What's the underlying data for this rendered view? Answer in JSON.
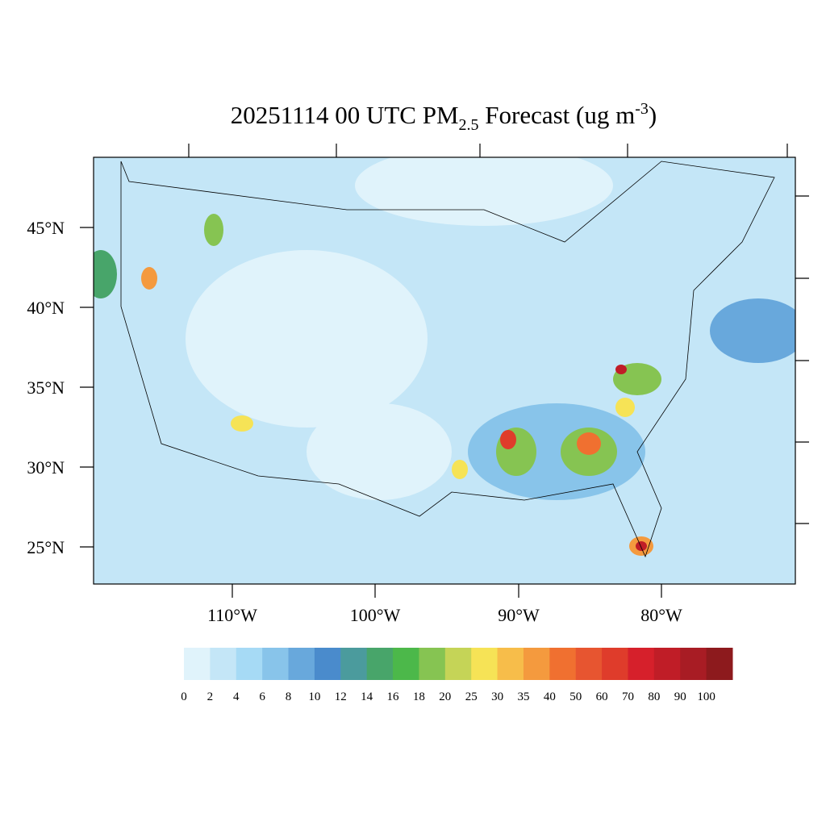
{
  "title": {
    "main": "20251114 00 UTC PM",
    "sub": "2.5",
    "rest": " Forecast (ug m",
    "sup": "-3",
    "end": ")"
  },
  "map": {
    "lat_labels": [
      "45°N",
      "40°N",
      "35°N",
      "30°N",
      "25°N"
    ],
    "lon_labels": [
      "110°W",
      "100°W",
      "90°W",
      "80°W"
    ]
  },
  "colorbar": {
    "levels": [
      0,
      2,
      4,
      6,
      8,
      10,
      12,
      14,
      16,
      18,
      20,
      25,
      30,
      35,
      40,
      50,
      60,
      70,
      80,
      90,
      100
    ],
    "colors": [
      "#e0f3fb",
      "#c4e6f7",
      "#a6daf5",
      "#88c4ea",
      "#68a8dc",
      "#4a8bcc",
      "#4b9b9d",
      "#48a56a",
      "#4cb84a",
      "#86c452",
      "#c5d457",
      "#f6e356",
      "#f7bd4a",
      "#f49a3e",
      "#f07030",
      "#e75530",
      "#df3c2b",
      "#d6202b",
      "#c01d27",
      "#a81c24",
      "#8d1a1d"
    ]
  }
}
